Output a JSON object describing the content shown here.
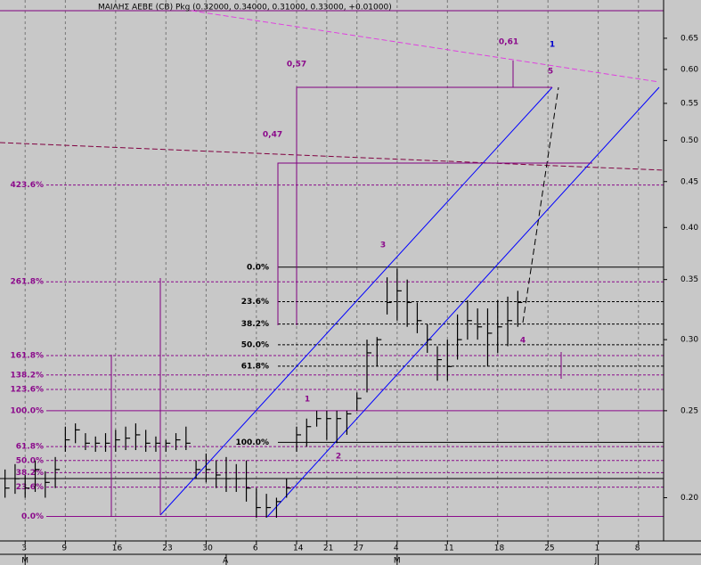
{
  "chart_data": {
    "type": "ohlc",
    "title": "ΜΑΙΛΗΣ ΑΕΒΕ (CB) Pkg (0.32000, 0.34000, 0.31000, 0.33000, +0.01000)",
    "log_scale": true,
    "ylim": [
      0.179,
      0.717
    ],
    "yticks": [
      {
        "value": 0.2,
        "label": "0.20"
      },
      0.25,
      {
        "value": 0.3,
        "label": "0.30"
      },
      0.35,
      {
        "value": 0.4,
        "label": "0.40"
      },
      0.45,
      {
        "value": 0.5,
        "label": "0.50"
      },
      0.55,
      {
        "value": 0.6,
        "label": "0.60"
      },
      0.65
    ],
    "xlim": [
      -0.5,
      65.5
    ],
    "xticks": [
      {
        "value": 2,
        "label": "3"
      },
      {
        "value": 6,
        "label": "9"
      },
      {
        "value": 11,
        "label": "16"
      },
      {
        "value": 16,
        "label": "23"
      },
      {
        "value": 20,
        "label": "30"
      },
      {
        "value": 25,
        "label": "6"
      },
      {
        "value": 29,
        "label": "14"
      },
      {
        "value": 32,
        "label": "21"
      },
      {
        "value": 35,
        "label": "27"
      },
      {
        "value": 39,
        "label": "4"
      },
      {
        "value": 44,
        "label": "11"
      },
      {
        "value": 49,
        "label": "18"
      },
      {
        "value": 54,
        "label": "25"
      },
      {
        "value": 59,
        "label": "1"
      },
      {
        "value": 63,
        "label": "8"
      }
    ],
    "month_ticks": [
      {
        "value": 2,
        "label": "M"
      },
      {
        "value": 22,
        "label": "A"
      },
      {
        "value": 39,
        "label": "M"
      },
      {
        "value": 59,
        "label": "J"
      }
    ],
    "color": "#000000",
    "x": [
      0,
      1,
      2,
      3,
      4,
      5,
      6,
      7,
      8,
      9,
      10,
      11,
      12,
      13,
      14,
      15,
      16,
      17,
      18,
      19,
      20,
      21,
      22,
      23,
      24,
      25,
      26,
      27,
      28,
      29,
      30,
      31,
      32,
      33,
      34,
      35,
      36,
      37,
      38,
      39,
      40,
      41,
      42,
      43,
      44,
      45,
      46,
      47,
      48,
      49,
      50,
      51
    ],
    "high": [
      0.215,
      0.218,
      0.212,
      0.22,
      0.214,
      0.222,
      0.24,
      0.242,
      0.236,
      0.234,
      0.236,
      0.238,
      0.24,
      0.242,
      0.238,
      0.234,
      0.232,
      0.236,
      0.24,
      0.22,
      0.224,
      0.22,
      0.222,
      0.218,
      0.22,
      0.205,
      0.202,
      0.2,
      0.21,
      0.24,
      0.245,
      0.25,
      0.25,
      0.25,
      0.25,
      0.262,
      0.3,
      0.302,
      0.352,
      0.36,
      0.35,
      0.33,
      0.312,
      0.295,
      0.3,
      0.32,
      0.332,
      0.325,
      0.325,
      0.332,
      0.335,
      0.34
    ],
    "low": [
      0.2,
      0.202,
      0.2,
      0.203,
      0.2,
      0.205,
      0.225,
      0.23,
      0.226,
      0.225,
      0.225,
      0.225,
      0.226,
      0.226,
      0.225,
      0.225,
      0.225,
      0.226,
      0.226,
      0.21,
      0.208,
      0.205,
      0.203,
      0.203,
      0.198,
      0.19,
      0.19,
      0.19,
      0.2,
      0.225,
      0.228,
      0.24,
      0.232,
      0.23,
      0.235,
      0.25,
      0.262,
      0.28,
      0.32,
      0.315,
      0.31,
      0.305,
      0.29,
      0.27,
      0.27,
      0.285,
      0.3,
      0.3,
      0.28,
      0.29,
      0.295,
      0.31
    ],
    "close": [
      0.205,
      0.21,
      0.205,
      0.215,
      0.208,
      0.215,
      0.232,
      0.238,
      0.23,
      0.23,
      0.23,
      0.232,
      0.233,
      0.235,
      0.23,
      0.23,
      0.23,
      0.232,
      0.23,
      0.215,
      0.215,
      0.212,
      0.21,
      0.21,
      0.205,
      0.195,
      0.195,
      0.198,
      0.205,
      0.235,
      0.24,
      0.245,
      0.245,
      0.245,
      0.248,
      0.258,
      0.29,
      0.3,
      0.33,
      0.34,
      0.33,
      0.315,
      0.3,
      0.285,
      0.28,
      0.3,
      0.315,
      0.31,
      0.305,
      0.31,
      0.315,
      0.33
    ],
    "fib_levels": [
      {
        "label": "423.6%",
        "value": 0.446
      },
      {
        "label": "261.8%",
        "value": 0.348
      },
      {
        "label": "161.8%",
        "value": 0.288
      },
      {
        "label": "138.2%",
        "value": 0.274
      },
      {
        "label": "123.6%",
        "value": 0.264
      },
      {
        "label": "100.0%",
        "value": 0.25
      },
      {
        "label": "61.8%",
        "value": 0.228
      },
      {
        "label": "50.0%",
        "value": 0.22
      },
      {
        "label": "38.2%",
        "value": 0.2133
      },
      {
        "label": "23.6%",
        "value": 0.2055
      },
      {
        "label": "0.0%",
        "value": 0.1906
      }
    ],
    "fib_levels_2": [
      {
        "label": "0.0%",
        "value": 0.3613
      },
      {
        "label": "23.6%",
        "value": 0.3307
      },
      {
        "label": "38.2%",
        "value": 0.3122
      },
      {
        "label": "50.0%",
        "value": 0.2961
      },
      {
        "label": "61.8%",
        "value": 0.2803
      },
      {
        "label": "100.0%",
        "value": 0.2305
      }
    ],
    "annotations": [
      "1",
      "2",
      "3",
      "4",
      "5",
      "1",
      "0,61",
      "0,57",
      "0,47"
    ]
  }
}
